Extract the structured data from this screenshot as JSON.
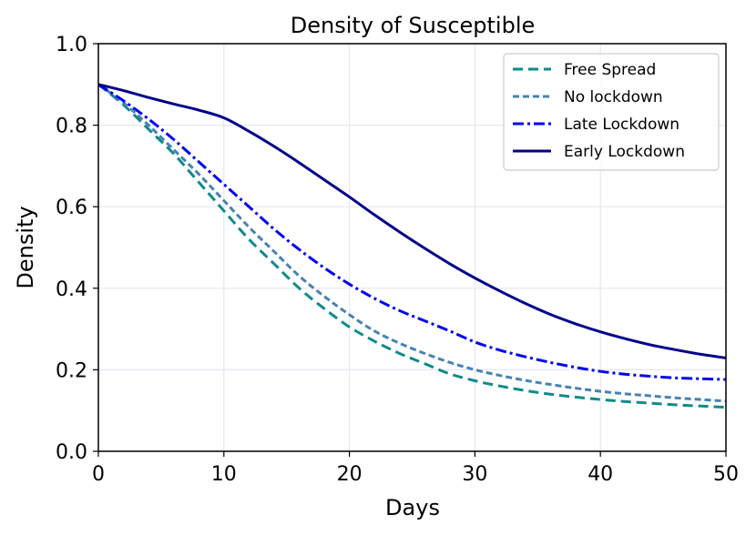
{
  "chart_data": {
    "type": "line",
    "title": "Density of Susceptible",
    "xlabel": "Days",
    "ylabel": "Density",
    "xlim": [
      0,
      50
    ],
    "ylim": [
      0,
      1.0
    ],
    "xticks": [
      0,
      10,
      20,
      30,
      40,
      50
    ],
    "yticks": [
      0.0,
      0.2,
      0.4,
      0.6,
      0.8,
      1.0
    ],
    "xtick_labels": [
      "0",
      "10",
      "20",
      "30",
      "40",
      "50"
    ],
    "ytick_labels": [
      "0.0",
      "0.2",
      "0.4",
      "0.6",
      "0.8",
      "1.0"
    ],
    "grid": true,
    "legend_position": "top-right",
    "x": [
      0,
      2,
      4,
      6,
      8,
      10,
      12,
      14,
      16,
      18,
      20,
      22,
      24,
      26,
      28,
      30,
      32,
      34,
      36,
      38,
      40,
      42,
      44,
      46,
      48,
      50
    ],
    "series": [
      {
        "name": "Free Spread",
        "color": "#0f8a8a",
        "dash": "dashed",
        "values": [
          0.9,
          0.85,
          0.79,
          0.73,
          0.66,
          0.59,
          0.52,
          0.46,
          0.4,
          0.35,
          0.305,
          0.27,
          0.24,
          0.215,
          0.19,
          0.173,
          0.16,
          0.149,
          0.14,
          0.133,
          0.127,
          0.122,
          0.118,
          0.114,
          0.111,
          0.108
        ]
      },
      {
        "name": "No lockdown",
        "color": "#4682b4",
        "dash": "dashed-fine",
        "values": [
          0.9,
          0.855,
          0.8,
          0.74,
          0.68,
          0.615,
          0.55,
          0.49,
          0.43,
          0.38,
          0.335,
          0.295,
          0.265,
          0.24,
          0.218,
          0.2,
          0.186,
          0.174,
          0.164,
          0.155,
          0.147,
          0.141,
          0.136,
          0.131,
          0.127,
          0.123
        ]
      },
      {
        "name": "Late Lockdown",
        "color": "#0000ee",
        "dash": "dashdot",
        "values": [
          0.9,
          0.86,
          0.815,
          0.765,
          0.71,
          0.655,
          0.6,
          0.545,
          0.495,
          0.45,
          0.41,
          0.375,
          0.345,
          0.32,
          0.295,
          0.268,
          0.248,
          0.232,
          0.218,
          0.206,
          0.196,
          0.189,
          0.184,
          0.18,
          0.178,
          0.176
        ]
      },
      {
        "name": "Early Lockdown",
        "color": "#00008b",
        "dash": "solid",
        "values": [
          0.9,
          0.885,
          0.868,
          0.852,
          0.837,
          0.818,
          0.785,
          0.748,
          0.708,
          0.666,
          0.624,
          0.58,
          0.538,
          0.498,
          0.46,
          0.425,
          0.393,
          0.363,
          0.336,
          0.313,
          0.293,
          0.276,
          0.261,
          0.249,
          0.238,
          0.229
        ]
      }
    ]
  }
}
